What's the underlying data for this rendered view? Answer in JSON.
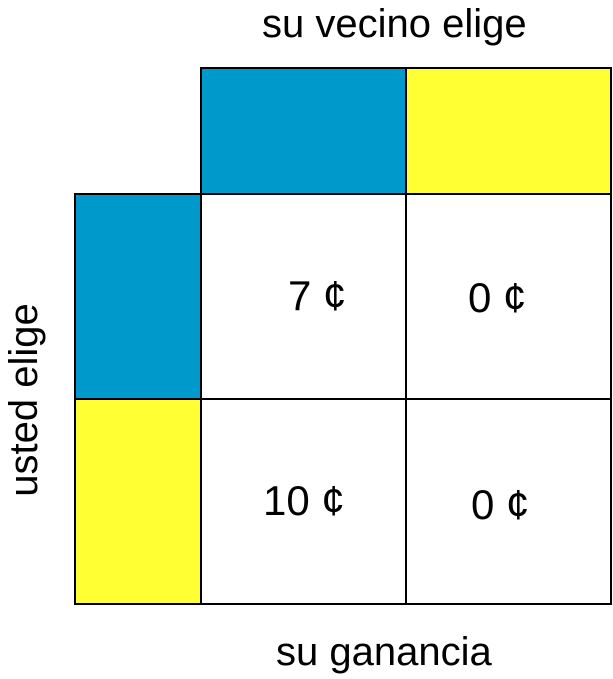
{
  "labels": {
    "top": "su vecino elige",
    "side": "usted elige",
    "bottom": "su ganancia"
  },
  "colors": {
    "choice_a": "#0099cc",
    "choice_b": "#ffff33"
  },
  "payoffs": {
    "a_a": "7 ¢",
    "a_b": "0 ¢",
    "b_a": "10 ¢",
    "b_b": "0 ¢"
  }
}
